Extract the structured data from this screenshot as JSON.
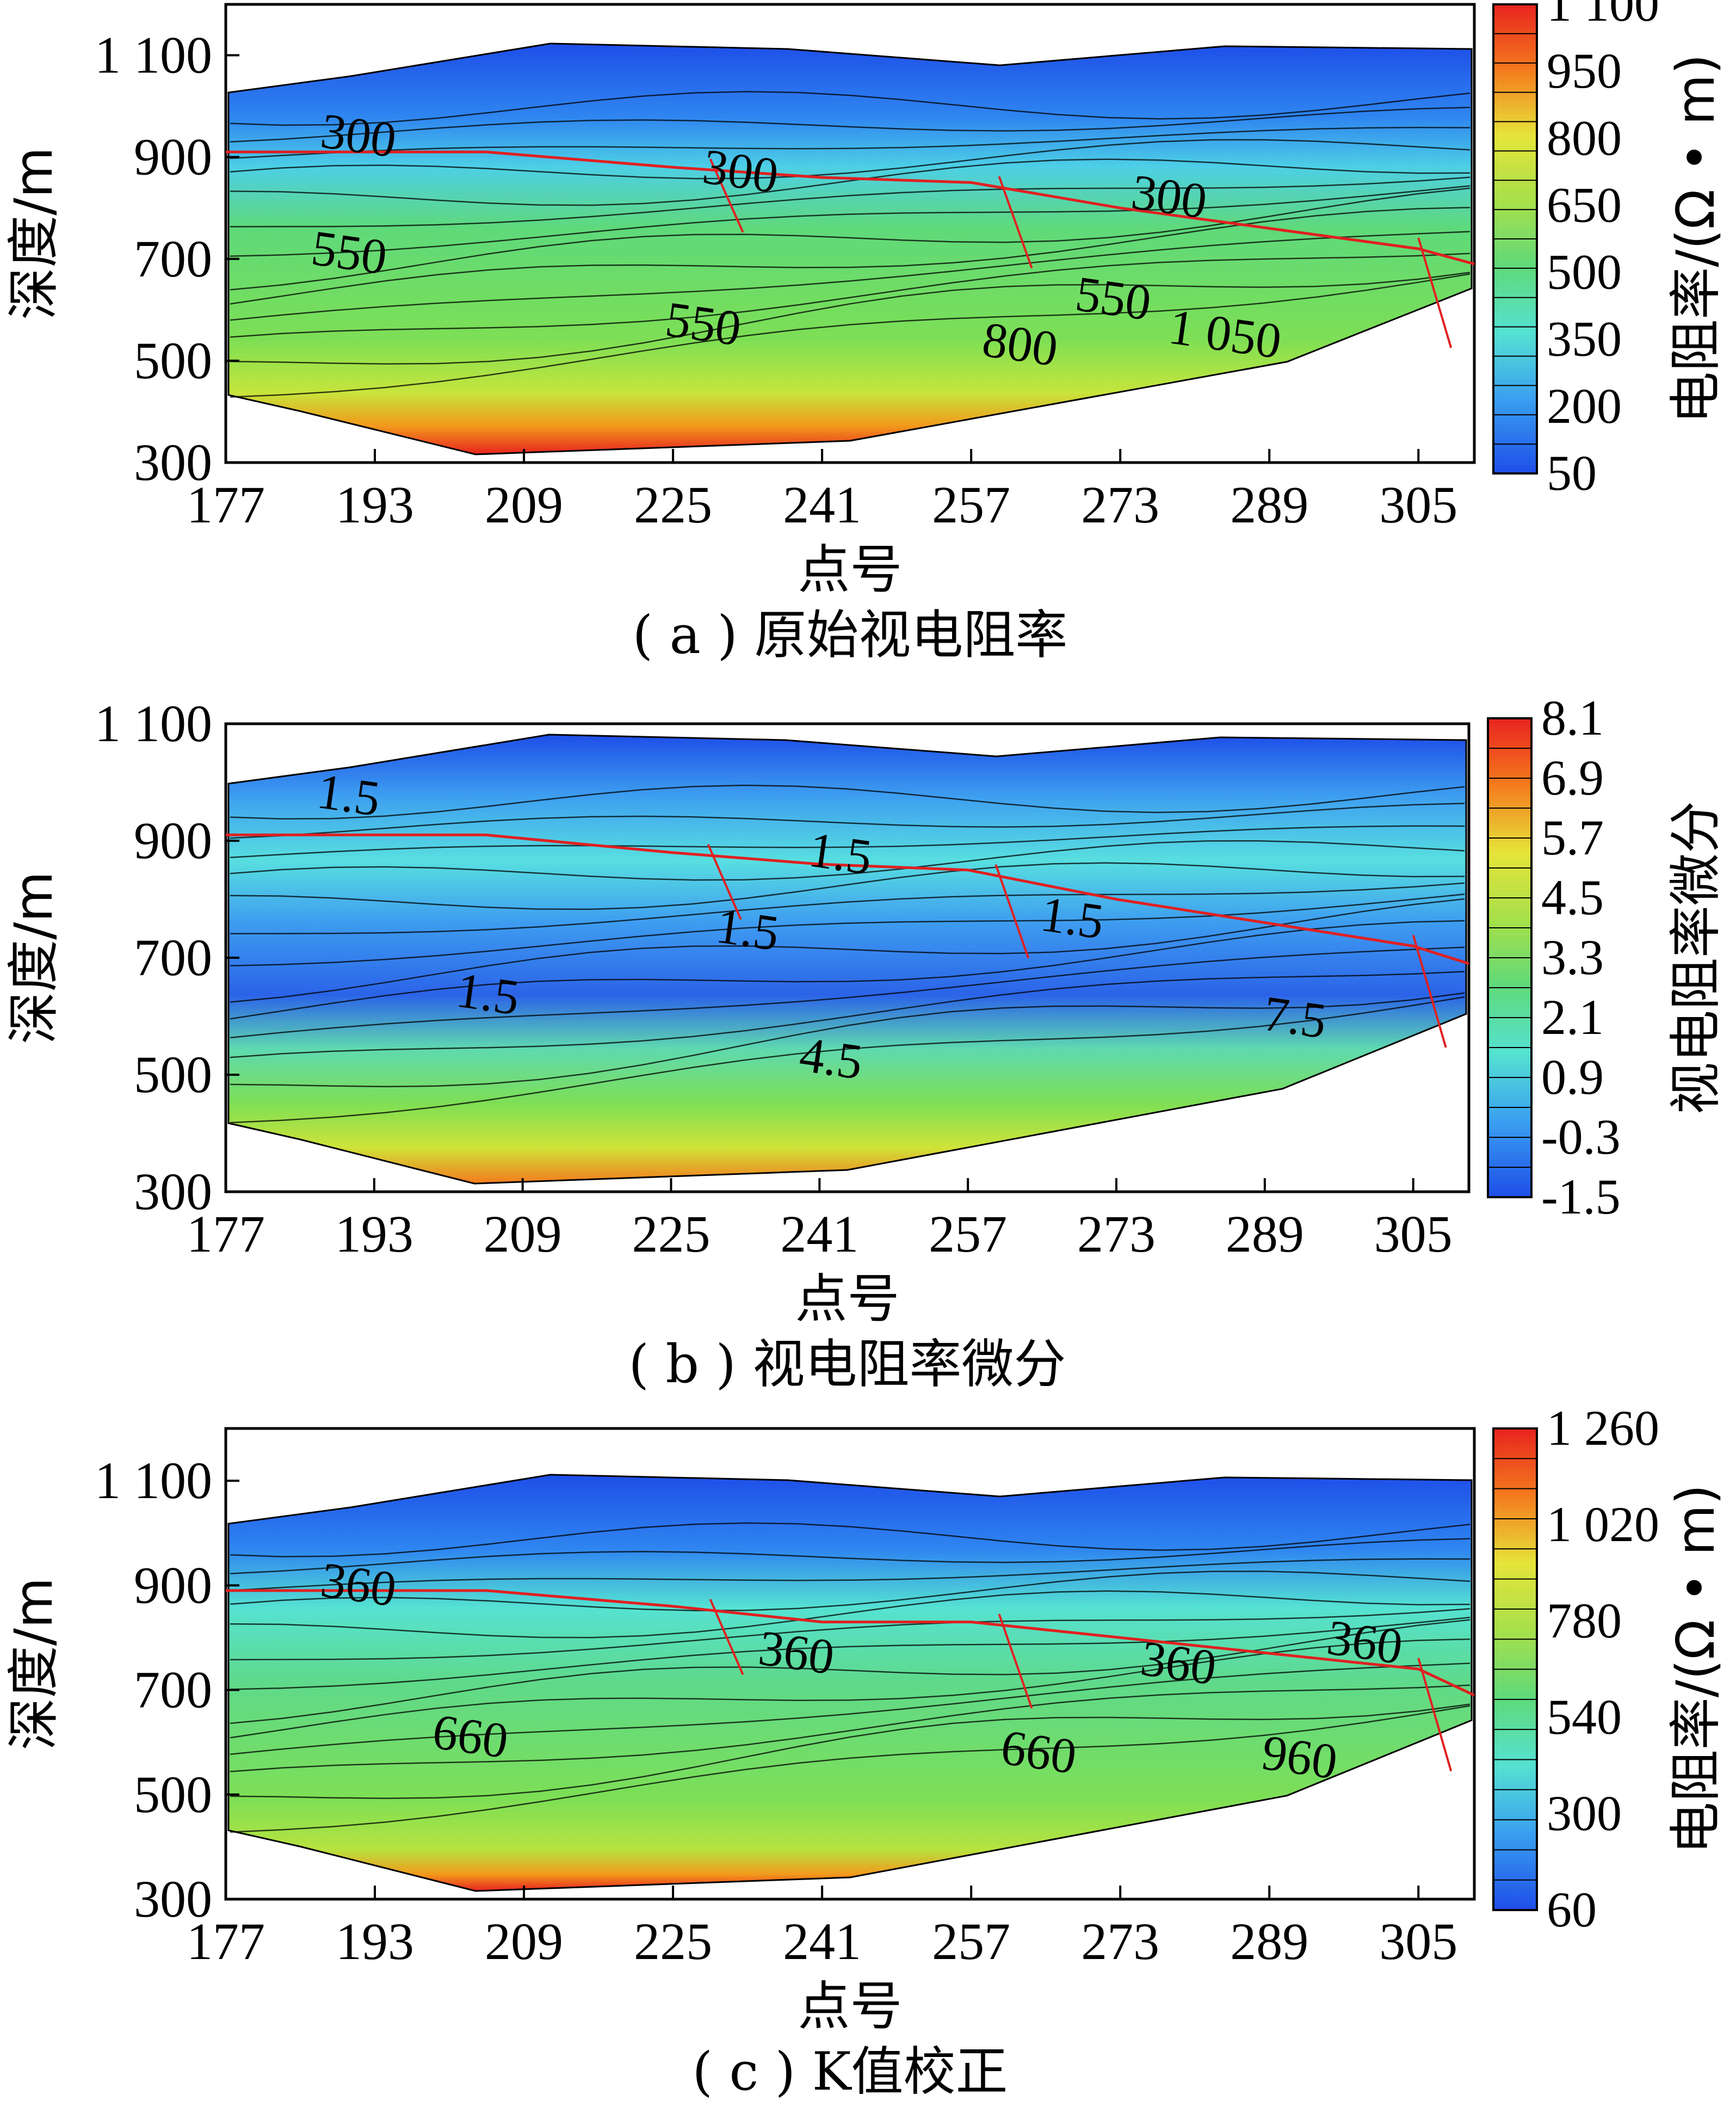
{
  "chart_data": [
    {
      "type": "contour",
      "caption": "( a ) 原始视电阻率",
      "xlabel": "点号",
      "ylabel": "深度/m",
      "x_ticks": [
        "177",
        "193",
        "209",
        "225",
        "241",
        "257",
        "273",
        "289",
        "305"
      ],
      "y_ticks": [
        "300",
        "500",
        "700",
        "900",
        "1 100"
      ],
      "xlim": [
        177,
        311
      ],
      "ylim": [
        300,
        1200
      ],
      "colorbar": {
        "label": "电阻率/(Ω • m)",
        "ticks": [
          "50",
          "200",
          "350",
          "500",
          "650",
          "800",
          "950",
          "1 100"
        ]
      },
      "contour_labels": [
        {
          "text": "300",
          "x": 191,
          "y": 910
        },
        {
          "text": "300",
          "x": 232,
          "y": 840
        },
        {
          "text": "300",
          "x": 278,
          "y": 790
        },
        {
          "text": "550",
          "x": 190,
          "y": 680
        },
        {
          "text": "550",
          "x": 228,
          "y": 540
        },
        {
          "text": "550",
          "x": 272,
          "y": 590
        },
        {
          "text": "800",
          "x": 262,
          "y": 500
        },
        {
          "text": "1 050",
          "x": 284,
          "y": 520
        }
      ],
      "interpreted_boundary": [
        [
          177,
          910
        ],
        [
          205,
          910
        ],
        [
          225,
          880
        ],
        [
          241,
          860
        ],
        [
          257,
          850
        ],
        [
          273,
          800
        ],
        [
          305,
          720
        ],
        [
          311,
          690
        ]
      ]
    },
    {
      "type": "contour",
      "caption": "( b ) 视电阻率微分",
      "xlabel": "点号",
      "ylabel": "深度/m",
      "x_ticks": [
        "177",
        "193",
        "209",
        "225",
        "241",
        "257",
        "273",
        "289",
        "305"
      ],
      "y_ticks": [
        "300",
        "500",
        "700",
        "900",
        "1 100"
      ],
      "xlim": [
        177,
        311
      ],
      "ylim": [
        300,
        1100
      ],
      "colorbar": {
        "label": "视电阻率微分",
        "ticks": [
          "-1.5",
          "-0.3",
          "0.9",
          "2.1",
          "3.3",
          "4.5",
          "5.7",
          "6.9",
          "8.1"
        ]
      },
      "contour_labels": [
        {
          "text": "1.5",
          "x": 190,
          "y": 950
        },
        {
          "text": "1.5",
          "x": 243,
          "y": 850
        },
        {
          "text": "1.5",
          "x": 233,
          "y": 720
        },
        {
          "text": "1.5",
          "x": 268,
          "y": 740
        },
        {
          "text": "1.5",
          "x": 205,
          "y": 610
        },
        {
          "text": "4.5",
          "x": 242,
          "y": 500
        },
        {
          "text": "7.5",
          "x": 292,
          "y": 570
        }
      ],
      "interpreted_boundary": [
        [
          177,
          910
        ],
        [
          205,
          910
        ],
        [
          225,
          880
        ],
        [
          241,
          860
        ],
        [
          257,
          850
        ],
        [
          273,
          800
        ],
        [
          305,
          720
        ],
        [
          311,
          690
        ]
      ]
    },
    {
      "type": "contour",
      "caption": "( c ) K值校正",
      "xlabel": "点号",
      "ylabel": "深度/m",
      "x_ticks": [
        "177",
        "193",
        "209",
        "225",
        "241",
        "257",
        "273",
        "289",
        "305"
      ],
      "y_ticks": [
        "300",
        "500",
        "700",
        "900",
        "1 100"
      ],
      "xlim": [
        177,
        311
      ],
      "ylim": [
        300,
        1200
      ],
      "colorbar": {
        "label": "电阻率/(Ω • m)",
        "ticks": [
          "60",
          "300",
          "540",
          "780",
          "1 020",
          "1 260"
        ]
      },
      "contour_labels": [
        {
          "text": "360",
          "x": 191,
          "y": 870
        },
        {
          "text": "360",
          "x": 238,
          "y": 740
        },
        {
          "text": "360",
          "x": 279,
          "y": 720
        },
        {
          "text": "360",
          "x": 299,
          "y": 760
        },
        {
          "text": "660",
          "x": 203,
          "y": 580
        },
        {
          "text": "660",
          "x": 264,
          "y": 550
        },
        {
          "text": "960",
          "x": 292,
          "y": 540
        }
      ],
      "interpreted_boundary": [
        [
          177,
          890
        ],
        [
          205,
          890
        ],
        [
          225,
          860
        ],
        [
          241,
          830
        ],
        [
          257,
          830
        ],
        [
          273,
          800
        ],
        [
          305,
          740
        ],
        [
          311,
          690
        ]
      ]
    }
  ]
}
